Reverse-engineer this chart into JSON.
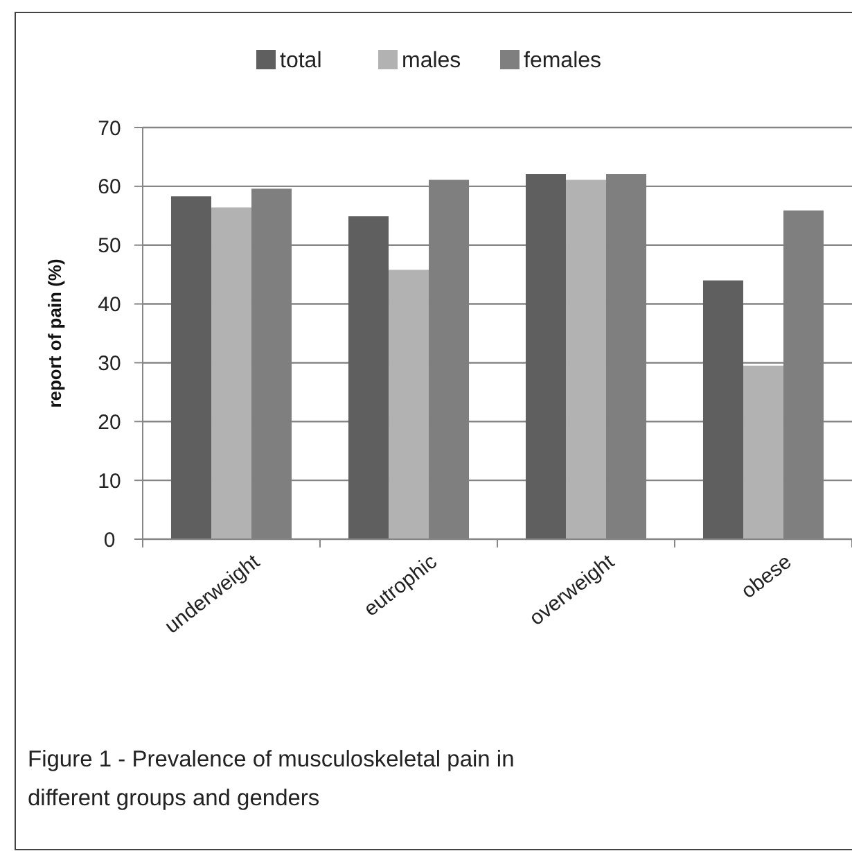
{
  "chart_data": {
    "type": "bar",
    "ylabel": "report of pain (%)",
    "categories": [
      "underweight",
      "eutrophic",
      "overweight",
      "obese"
    ],
    "series": [
      {
        "name": "total",
        "color": "#5f5f5f",
        "values": [
          58.3,
          54.9,
          62.1,
          44.0
        ]
      },
      {
        "name": "males",
        "color": "#b2b2b2",
        "values": [
          56.4,
          45.8,
          61.1,
          29.5
        ]
      },
      {
        "name": "females",
        "color": "#7f7f7f",
        "values": [
          59.6,
          61.1,
          62.1,
          55.9
        ]
      }
    ],
    "ylim": [
      0,
      70
    ],
    "yticks": [
      0,
      10,
      20,
      30,
      40,
      50,
      60,
      70
    ],
    "grid": "y",
    "legend": "top",
    "annotations": [
      "Figure 1 - Prevalence of musculoskeletal pain in different groups and genders"
    ]
  }
}
